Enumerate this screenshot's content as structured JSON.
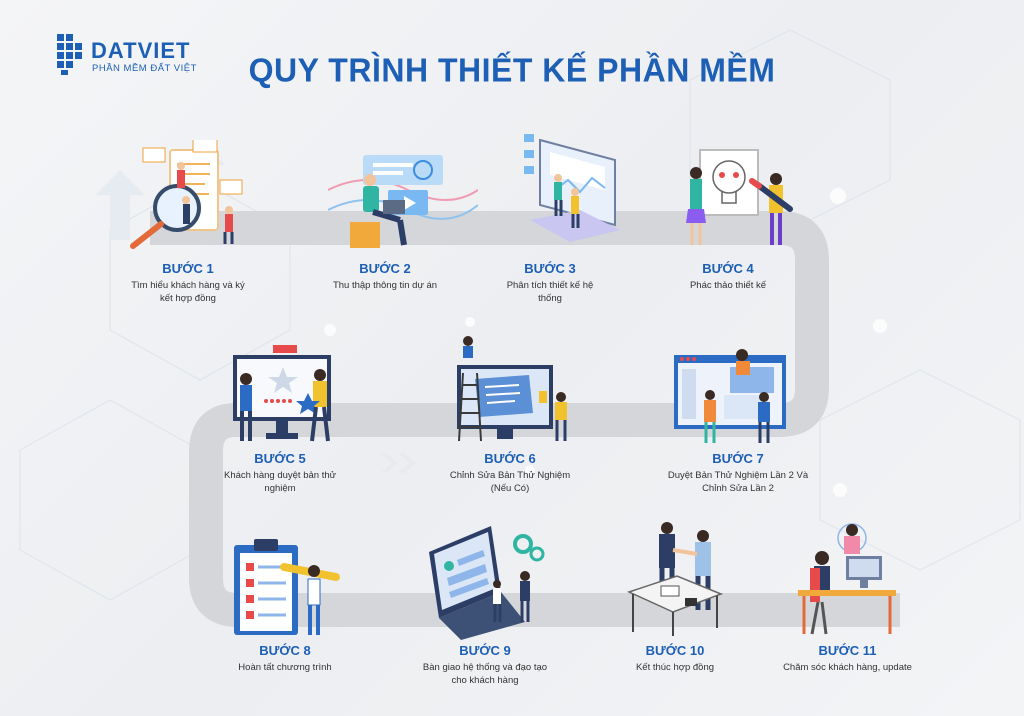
{
  "logo": {
    "name": "DATVIET",
    "tagline": "PHẦN MỀM ĐẤT VIỆT"
  },
  "title": "QUY TRÌNH THIẾT KẾ PHẦN MỀM",
  "colors": {
    "brand": "#1d5fb5",
    "road": "#d4d6da",
    "text": "#333333"
  },
  "steps": [
    {
      "title": "BƯỚC 1",
      "desc": "Tìm hiểu khách hàng và ký kết hợp đồng"
    },
    {
      "title": "BƯỚC 2",
      "desc": "Thu thập thông tin dự án"
    },
    {
      "title": "BƯỚC 3",
      "desc": "Phân tích thiết kế hệ thống"
    },
    {
      "title": "BƯỚC 4",
      "desc": "Phác thảo thiết kế"
    },
    {
      "title": "BƯỚC 5",
      "desc": "Khách hàng duyệt bản thử nghiệm"
    },
    {
      "title": "BƯỚC 6",
      "desc": "Chỉnh Sửa Bản Thử Nghiệm (Nếu Có)"
    },
    {
      "title": "BƯỚC 7",
      "desc": "Duyệt Bản Thử Nghiệm Lần 2 Và Chỉnh Sửa Lần 2"
    },
    {
      "title": "BƯỚC 8",
      "desc": "Hoàn tất chương trình"
    },
    {
      "title": "BƯỚC 9",
      "desc": "Bàn giao hệ thống và đạo tạo cho khách hàng"
    },
    {
      "title": "BƯỚC 10",
      "desc": "Kết thúc hợp đồng"
    },
    {
      "title": "BƯỚC 11",
      "desc": "Chăm sóc khách hàng, update"
    }
  ]
}
